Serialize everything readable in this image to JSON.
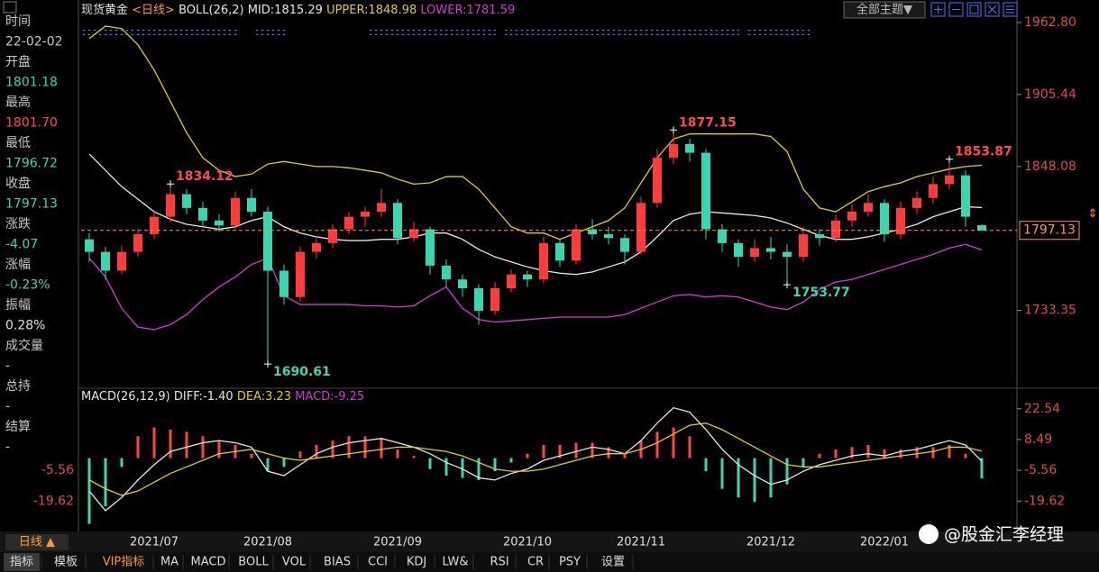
{
  "info_panel": [
    {
      "text": "时间",
      "color": "#c8c8c8"
    },
    {
      "text": "22-02-02",
      "color": "#c8c8c8"
    },
    {
      "text": "开盘",
      "color": "#c8c8c8"
    },
    {
      "text": "1801.18",
      "color": "#3ad6b0"
    },
    {
      "text": "最高",
      "color": "#c8c8c8"
    },
    {
      "text": "1801.70",
      "color": "#ff4a4a"
    },
    {
      "text": "最低",
      "color": "#c8c8c8"
    },
    {
      "text": "1796.72",
      "color": "#3ad6b0"
    },
    {
      "text": "收盘",
      "color": "#c8c8c8"
    },
    {
      "text": "1797.13",
      "color": "#3ad6b0"
    },
    {
      "text": "涨跌",
      "color": "#c8c8c8"
    },
    {
      "text": "-4.07",
      "color": "#3ad6b0"
    },
    {
      "text": "涨幅",
      "color": "#c8c8c8"
    },
    {
      "text": "-0.23%",
      "color": "#3ad6b0"
    },
    {
      "text": "振幅",
      "color": "#c8c8c8"
    },
    {
      "text": "0.28%",
      "color": "#e0e0e0"
    },
    {
      "text": "成交量",
      "color": "#c8c8c8"
    },
    {
      "text": "-",
      "color": "#c8c8c8"
    },
    {
      "text": "总持",
      "color": "#c8c8c8"
    },
    {
      "text": "-",
      "color": "#c8c8c8"
    },
    {
      "text": "结算",
      "color": "#c8c8c8"
    },
    {
      "text": "-",
      "color": "#c8c8c8"
    }
  ],
  "theme_button": "全部主题▼",
  "period_button": "日线 ▲",
  "watermark": "@股金汇李经理",
  "tabs": [
    "指标",
    "模板",
    "VIP指标",
    "MA",
    "MACD",
    "BOLL",
    "VOL",
    "BIAS",
    "CCI",
    "KDJ",
    "LW&",
    "RSI",
    "CR",
    "PSY",
    "设置"
  ],
  "chart_data": [
    {
      "type": "candlestick",
      "title": "现货黄金",
      "period": "<日线>",
      "indicator_text": [
        {
          "text": "BOLL(26,2)",
          "color": "#e6e6e6"
        },
        {
          "text": "MID:1815.29",
          "color": "#e6e6e6"
        },
        {
          "text": "UPPER:1848.98",
          "color": "#e0cc22"
        },
        {
          "text": "LOWER:1781.59",
          "color": "#d23ad2"
        }
      ],
      "up_color": "#ff3b3b",
      "down_color": "#3ad6b0",
      "ylim": [
        1672,
        1970
      ],
      "yticks": [
        {
          "value": 1962.8,
          "label": "1962.80"
        },
        {
          "value": 1905.44,
          "label": "1905.44"
        },
        {
          "value": 1848.08,
          "label": "1848.08"
        },
        {
          "value": 1733.35,
          "label": "1733.35"
        }
      ],
      "grid": false,
      "ohlc": [
        [
          1790,
          1795,
          1772,
          1780
        ],
        [
          1780,
          1784,
          1758,
          1765
        ],
        [
          1765,
          1785,
          1762,
          1780
        ],
        [
          1780,
          1798,
          1776,
          1794
        ],
        [
          1794,
          1812,
          1790,
          1808
        ],
        [
          1808,
          1834.12,
          1804,
          1826
        ],
        [
          1826,
          1830,
          1810,
          1815
        ],
        [
          1815,
          1820,
          1800,
          1805
        ],
        [
          1805,
          1810,
          1796,
          1801
        ],
        [
          1801,
          1828,
          1798,
          1823
        ],
        [
          1823,
          1830,
          1808,
          1812
        ],
        [
          1812,
          1816,
          1690.61,
          1765
        ],
        [
          1765,
          1770,
          1738,
          1744
        ],
        [
          1744,
          1784,
          1740,
          1780
        ],
        [
          1780,
          1792,
          1775,
          1787
        ],
        [
          1787,
          1802,
          1783,
          1798
        ],
        [
          1798,
          1812,
          1794,
          1808
        ],
        [
          1808,
          1816,
          1800,
          1812
        ],
        [
          1812,
          1830,
          1808,
          1819
        ],
        [
          1819,
          1822,
          1786,
          1791
        ],
        [
          1791,
          1804,
          1788,
          1798
        ],
        [
          1798,
          1800,
          1762,
          1769
        ],
        [
          1769,
          1774,
          1752,
          1758
        ],
        [
          1758,
          1762,
          1744,
          1751
        ],
        [
          1751,
          1754,
          1722,
          1733
        ],
        [
          1733,
          1756,
          1730,
          1751
        ],
        [
          1751,
          1766,
          1748,
          1762
        ],
        [
          1762,
          1765,
          1752,
          1758
        ],
        [
          1758,
          1792,
          1755,
          1787
        ],
        [
          1787,
          1790,
          1768,
          1773
        ],
        [
          1773,
          1802,
          1770,
          1798
        ],
        [
          1798,
          1806,
          1790,
          1794
        ],
        [
          1794,
          1800,
          1786,
          1791
        ],
        [
          1791,
          1794,
          1770,
          1780
        ],
        [
          1780,
          1824,
          1778,
          1819
        ],
        [
          1819,
          1862,
          1815,
          1855
        ],
        [
          1855,
          1877.15,
          1850,
          1866
        ],
        [
          1866,
          1870,
          1852,
          1859
        ],
        [
          1859,
          1862,
          1790,
          1798
        ],
        [
          1798,
          1802,
          1780,
          1787
        ],
        [
          1787,
          1790,
          1768,
          1776
        ],
        [
          1776,
          1790,
          1772,
          1783
        ],
        [
          1783,
          1792,
          1774,
          1780
        ],
        [
          1780,
          1786,
          1753.77,
          1776
        ],
        [
          1776,
          1800,
          1772,
          1794
        ],
        [
          1794,
          1798,
          1785,
          1791
        ],
        [
          1791,
          1810,
          1788,
          1805
        ],
        [
          1805,
          1818,
          1800,
          1812
        ],
        [
          1812,
          1826,
          1808,
          1819
        ],
        [
          1819,
          1822,
          1788,
          1794
        ],
        [
          1794,
          1820,
          1790,
          1815
        ],
        [
          1815,
          1828,
          1810,
          1823
        ],
        [
          1823,
          1840,
          1818,
          1834
        ],
        [
          1834,
          1853.87,
          1830,
          1841
        ],
        [
          1841,
          1845,
          1800,
          1808
        ],
        [
          1801.18,
          1801.7,
          1796.72,
          1797.13
        ]
      ],
      "series": [
        {
          "color": "#e6e6e6",
          "values": [
            1858,
            1845,
            1832,
            1822,
            1812,
            1806,
            1802,
            1800,
            1798,
            1800,
            1805,
            1808,
            1800,
            1795,
            1792,
            1790,
            1789,
            1789,
            1790,
            1790,
            1792,
            1795,
            1795,
            1790,
            1782,
            1776,
            1772,
            1768,
            1765,
            1763,
            1762,
            1764,
            1768,
            1772,
            1780,
            1792,
            1805,
            1810,
            1812,
            1811,
            1810,
            1809,
            1807,
            1803,
            1798,
            1793,
            1790,
            1790,
            1792,
            1795,
            1798,
            1802,
            1808,
            1812,
            1816,
            1815.29
          ]
        },
        {
          "color": "#e0cc22",
          "values": [
            1950,
            1960,
            1958,
            1945,
            1925,
            1900,
            1875,
            1855,
            1845,
            1840,
            1842,
            1850,
            1852,
            1850,
            1848,
            1848,
            1847,
            1845,
            1843,
            1838,
            1834,
            1835,
            1840,
            1840,
            1830,
            1815,
            1800,
            1795,
            1795,
            1790,
            1795,
            1800,
            1805,
            1815,
            1835,
            1855,
            1870,
            1874,
            1874,
            1874,
            1874,
            1874,
            1872,
            1860,
            1830,
            1815,
            1812,
            1820,
            1828,
            1832,
            1835,
            1840,
            1843,
            1846,
            1848,
            1848.98
          ]
        },
        {
          "color": "#d23ad2",
          "values": [
            1775,
            1760,
            1735,
            1720,
            1718,
            1722,
            1730,
            1742,
            1752,
            1760,
            1770,
            1775,
            1745,
            1738,
            1738,
            1738,
            1738,
            1737,
            1737,
            1736,
            1737,
            1745,
            1752,
            1735,
            1726,
            1724,
            1725,
            1726,
            1727,
            1728,
            1728,
            1728,
            1728,
            1730,
            1735,
            1740,
            1745,
            1746,
            1744,
            1745,
            1744,
            1740,
            1736,
            1734,
            1740,
            1750,
            1756,
            1758,
            1762,
            1766,
            1770,
            1774,
            1778,
            1783,
            1786,
            1781.59
          ]
        }
      ]
    },
    {
      "type": "macd",
      "indicator_text": [
        {
          "text": "MACD(26,12,9)",
          "color": "#e6e6e6"
        },
        {
          "text": "DIFF:-1.40",
          "color": "#e6e6e6"
        },
        {
          "text": "DEA:3.23",
          "color": "#e0cc22"
        },
        {
          "text": "MACD:-9.25",
          "color": "#d23ad2"
        }
      ],
      "categories": [
        null,
        null,
        null,
        null,
        "2021/07",
        null,
        null,
        null,
        null,
        null,
        null,
        "2021/08",
        null,
        null,
        null,
        null,
        null,
        null,
        null,
        "2021/09",
        null,
        null,
        null,
        null,
        null,
        null,
        null,
        "2021/10",
        null,
        null,
        null,
        null,
        null,
        null,
        "2021/11",
        null,
        null,
        null,
        null,
        null,
        null,
        null,
        "2021/12",
        null,
        null,
        null,
        null,
        null,
        null,
        "2022/01",
        null,
        null,
        null,
        null,
        null,
        null
      ],
      "ylim": [
        -33.5,
        31.5
      ],
      "yticks": [
        {
          "value": 22.54,
          "label": "22.54"
        },
        {
          "value": 8.49,
          "label": "8.49"
        },
        {
          "value": -5.56,
          "label": "-5.56"
        },
        {
          "value": -19.62,
          "label": "-19.62"
        }
      ],
      "up_color": "#ff4444",
      "down_color": "#3ad6b0",
      "series": [
        {
          "color": "#e6e6e6",
          "values": [
            -15,
            -24,
            -18,
            -10,
            -3,
            3,
            5,
            7,
            8,
            7,
            5,
            -6,
            -8,
            -3,
            2,
            5,
            7,
            8,
            9,
            7,
            5,
            2,
            -2,
            -5,
            -9,
            -10,
            -7,
            -5,
            -1,
            1,
            3,
            5,
            4,
            2,
            8,
            16,
            23,
            21,
            13,
            4,
            -3,
            -8,
            -12,
            -10,
            -6,
            -3,
            -1,
            1,
            2,
            1,
            3,
            4,
            6,
            8,
            6,
            -1.4
          ]
        },
        {
          "color": "#e0cc22",
          "values": [
            -10,
            -14,
            -17,
            -15,
            -11,
            -7,
            -4,
            -1,
            2,
            3,
            4,
            2,
            0,
            -1,
            0,
            1,
            2,
            3,
            4,
            5,
            5,
            4,
            3,
            1,
            -2,
            -5,
            -6,
            -6,
            -5,
            -3,
            -1,
            1,
            2,
            2,
            4,
            7,
            11,
            15,
            16,
            13,
            9,
            5,
            1,
            -3,
            -4,
            -4,
            -3,
            -2,
            -1,
            0,
            1,
            2,
            3,
            5,
            5,
            3.23
          ]
        }
      ],
      "histogram": [
        -30,
        -22,
        -4,
        10,
        14,
        13,
        12,
        10,
        8,
        6,
        2,
        -6,
        -4,
        3,
        6,
        8,
        10,
        10,
        9,
        4,
        1,
        -5,
        -8,
        -9,
        -10,
        -6,
        -2,
        2,
        6,
        6,
        7,
        7,
        5,
        2,
        8,
        12,
        14,
        10,
        -6,
        -14,
        -18,
        -20,
        -18,
        -12,
        -4,
        2,
        4,
        5,
        6,
        4,
        4,
        5,
        5,
        6,
        2,
        -9.25
      ]
    }
  ]
}
